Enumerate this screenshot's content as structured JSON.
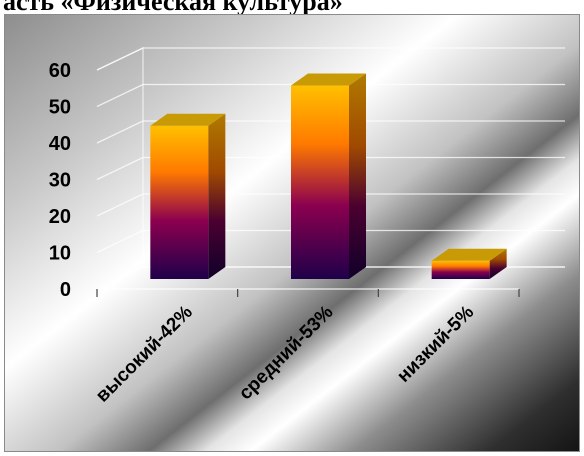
{
  "title": "асть «Физическая культура»",
  "chart_data": {
    "type": "bar",
    "categories": [
      "высокий-42%",
      "средний-53%",
      "низкий-5%"
    ],
    "values": [
      42,
      53,
      5
    ],
    "ylim": [
      0,
      60
    ],
    "yticks": [
      "0",
      "10",
      "20",
      "30",
      "40",
      "50",
      "60"
    ],
    "grid": true,
    "legend": "none",
    "style": "3d-column",
    "colors": {
      "bar_top": "#ffc000",
      "bar_mid": "#8b004f",
      "bar_bottom": "#1f004a",
      "bar_cap": "#c79a06",
      "bar_side": "#7a4a00",
      "gridline": "#ffffff"
    }
  }
}
